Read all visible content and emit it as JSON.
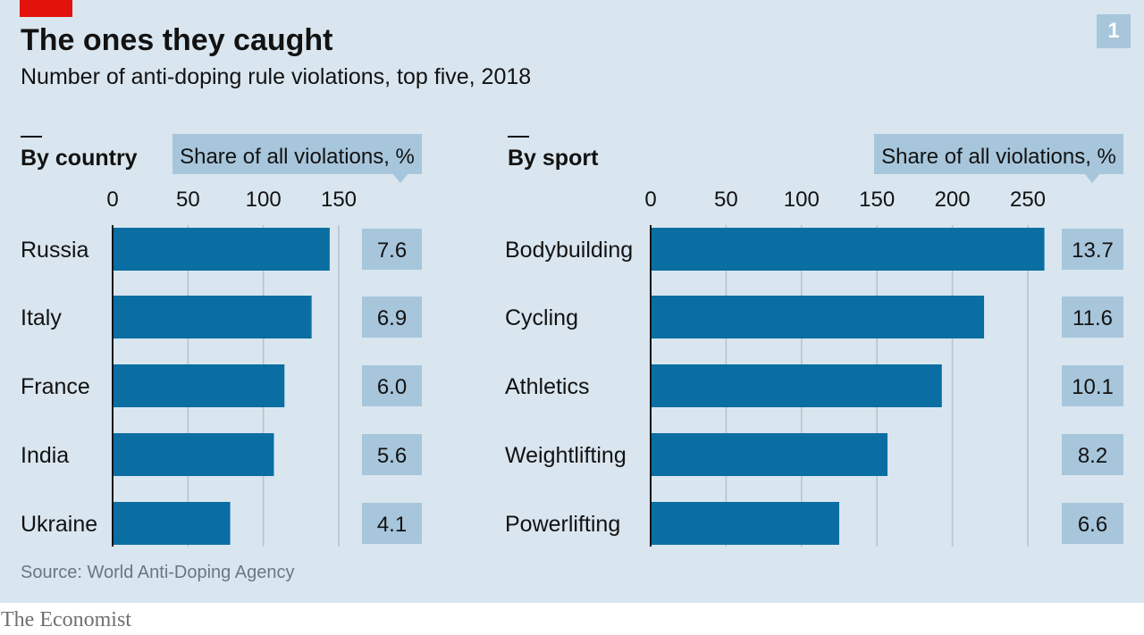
{
  "header": {
    "title": "The ones they caught",
    "subtitle": "Number of anti-doping rule violations, top five, 2018",
    "chart_number": "1"
  },
  "footer": {
    "source": "Source: World Anti-Doping Agency",
    "logo": "The Economist"
  },
  "colors": {
    "background": "#d9e6ef",
    "bar": "#0b6ea3",
    "share_box": "#a7c6dc",
    "gridline": "#b7c4cd",
    "accent_red": "#e3120b"
  },
  "chart_data": [
    {
      "type": "bar",
      "orientation": "horizontal",
      "title": "By country",
      "categories": [
        "Russia",
        "Italy",
        "France",
        "India",
        "Ukraine"
      ],
      "values": [
        144,
        132,
        114,
        107,
        78
      ],
      "xlim": [
        0,
        160
      ],
      "xticks": [
        0,
        50,
        100,
        150
      ],
      "grid": true,
      "annotation_label": "Share of all violations, %",
      "share_values": [
        "7.6",
        "6.9",
        "6.0",
        "5.6",
        "4.1"
      ]
    },
    {
      "type": "bar",
      "orientation": "horizontal",
      "title": "By sport",
      "categories": [
        "Bodybuilding",
        "Cycling",
        "Athletics",
        "Weightlifting",
        "Powerlifting"
      ],
      "values": [
        261,
        221,
        193,
        157,
        125
      ],
      "xlim": [
        0,
        270
      ],
      "xticks": [
        0,
        50,
        100,
        150,
        200,
        250
      ],
      "grid": true,
      "annotation_label": "Share of all violations, %",
      "share_values": [
        "13.7",
        "11.6",
        "10.1",
        "8.2",
        "6.6"
      ]
    }
  ]
}
